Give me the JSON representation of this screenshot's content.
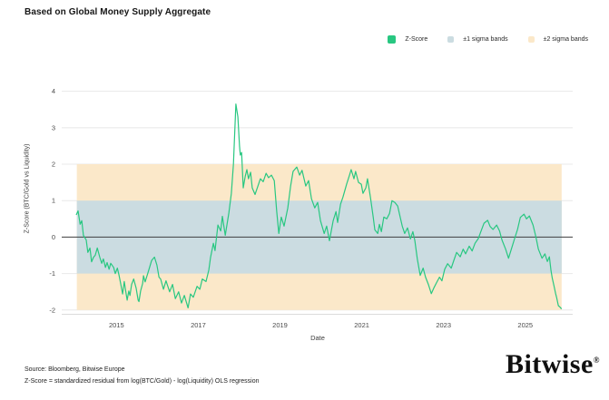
{
  "header": {
    "title": "Based on Global Money Supply Aggregate"
  },
  "legend": {
    "items": [
      {
        "label": "Z-Score",
        "color": "#28C781",
        "swatch": 9
      },
      {
        "label": "±1 sigma bands",
        "color": "#CBDCE1",
        "swatch": 7
      },
      {
        "label": "±2 sigma bands",
        "color": "#FBE8C9",
        "swatch": 7
      }
    ]
  },
  "footer": {
    "source": "Source: Bloomberg, Bitwise Europe",
    "note": "Z-Score = standardized residual from log(BTC/Gold) - log(Liquidity) OLS regression"
  },
  "logo": {
    "text": "Bitwise",
    "registered_mark": "®"
  },
  "chart_data": {
    "type": "line",
    "title": "Based on Global Money Supply Aggregate",
    "xlabel": "Date",
    "ylabel": "Z-Score (BTC/Gold vs Liquidity)",
    "xlim": [
      2013.66,
      2026.16
    ],
    "ylim": [
      -2.13,
      4.14
    ],
    "xticks": [
      2015,
      2017,
      2019,
      2021,
      2023,
      2025
    ],
    "yticks": [
      -2,
      -1,
      0,
      1,
      2,
      3,
      4
    ],
    "grid": true,
    "legend_position": "top-right",
    "zero_line": true,
    "colors": {
      "line": "#28C781",
      "band1": "#CBDCE1",
      "band2": "#FBE8C9",
      "grid": "#E8E8E8",
      "zero_line": "#3F3F3F",
      "axis_line": "#DCDCDC",
      "tick_label": "#4A4A4A"
    },
    "bands": [
      {
        "name": "±2 sigma bands",
        "from": -2,
        "to": 2,
        "color": "#FBE8C9",
        "x_from": 2014.03,
        "x_to": 2025.89
      },
      {
        "name": "±1 sigma bands",
        "from": -1,
        "to": 1,
        "color": "#CBDCE1",
        "x_from": 2014.03,
        "x_to": 2025.89
      }
    ],
    "series": [
      {
        "name": "Z-Score",
        "color": "#28C781",
        "points": [
          [
            2014.02,
            0.62
          ],
          [
            2014.06,
            0.72
          ],
          [
            2014.11,
            0.35
          ],
          [
            2014.15,
            0.45
          ],
          [
            2014.19,
            0.05
          ],
          [
            2014.26,
            -0.08
          ],
          [
            2014.3,
            -0.42
          ],
          [
            2014.35,
            -0.3
          ],
          [
            2014.39,
            -0.68
          ],
          [
            2014.44,
            -0.55
          ],
          [
            2014.48,
            -0.5
          ],
          [
            2014.53,
            -0.3
          ],
          [
            2014.59,
            -0.55
          ],
          [
            2014.64,
            -0.72
          ],
          [
            2014.68,
            -0.6
          ],
          [
            2014.73,
            -0.83
          ],
          [
            2014.77,
            -0.7
          ],
          [
            2014.82,
            -0.88
          ],
          [
            2014.86,
            -0.72
          ],
          [
            2014.93,
            -0.83
          ],
          [
            2014.97,
            -1.0
          ],
          [
            2015.02,
            -0.85
          ],
          [
            2015.06,
            -1.04
          ],
          [
            2015.1,
            -1.27
          ],
          [
            2015.15,
            -1.56
          ],
          [
            2015.19,
            -1.22
          ],
          [
            2015.22,
            -1.45
          ],
          [
            2015.26,
            -1.73
          ],
          [
            2015.3,
            -1.48
          ],
          [
            2015.33,
            -1.6
          ],
          [
            2015.37,
            -1.3
          ],
          [
            2015.42,
            -1.15
          ],
          [
            2015.48,
            -1.4
          ],
          [
            2015.53,
            -1.73
          ],
          [
            2015.55,
            -1.77
          ],
          [
            2015.59,
            -1.48
          ],
          [
            2015.64,
            -1.27
          ],
          [
            2015.66,
            -1.06
          ],
          [
            2015.7,
            -1.23
          ],
          [
            2015.77,
            -0.98
          ],
          [
            2015.86,
            -0.64
          ],
          [
            2015.93,
            -0.55
          ],
          [
            2015.99,
            -0.77
          ],
          [
            2016.04,
            -1.1
          ],
          [
            2016.08,
            -1.15
          ],
          [
            2016.15,
            -1.43
          ],
          [
            2016.21,
            -1.2
          ],
          [
            2016.3,
            -1.5
          ],
          [
            2016.37,
            -1.3
          ],
          [
            2016.44,
            -1.69
          ],
          [
            2016.52,
            -1.5
          ],
          [
            2016.59,
            -1.81
          ],
          [
            2016.66,
            -1.6
          ],
          [
            2016.75,
            -1.94
          ],
          [
            2016.81,
            -1.56
          ],
          [
            2016.88,
            -1.65
          ],
          [
            2016.97,
            -1.35
          ],
          [
            2017.04,
            -1.43
          ],
          [
            2017.1,
            -1.15
          ],
          [
            2017.19,
            -1.22
          ],
          [
            2017.26,
            -0.9
          ],
          [
            2017.3,
            -0.57
          ],
          [
            2017.37,
            -0.17
          ],
          [
            2017.41,
            -0.37
          ],
          [
            2017.48,
            0.33
          ],
          [
            2017.55,
            0.17
          ],
          [
            2017.59,
            0.57
          ],
          [
            2017.66,
            0.05
          ],
          [
            2017.75,
            0.67
          ],
          [
            2017.81,
            1.2
          ],
          [
            2017.86,
            2.0
          ],
          [
            2017.9,
            3.1
          ],
          [
            2017.92,
            3.65
          ],
          [
            2017.97,
            3.3
          ],
          [
            2018.01,
            2.5
          ],
          [
            2018.03,
            2.25
          ],
          [
            2018.06,
            2.32
          ],
          [
            2018.1,
            1.35
          ],
          [
            2018.15,
            1.67
          ],
          [
            2018.19,
            1.85
          ],
          [
            2018.23,
            1.6
          ],
          [
            2018.28,
            1.78
          ],
          [
            2018.32,
            1.35
          ],
          [
            2018.39,
            1.17
          ],
          [
            2018.46,
            1.4
          ],
          [
            2018.52,
            1.6
          ],
          [
            2018.59,
            1.52
          ],
          [
            2018.66,
            1.75
          ],
          [
            2018.72,
            1.63
          ],
          [
            2018.79,
            1.7
          ],
          [
            2018.86,
            1.55
          ],
          [
            2018.92,
            0.7
          ],
          [
            2018.97,
            0.1
          ],
          [
            2019.03,
            0.55
          ],
          [
            2019.1,
            0.3
          ],
          [
            2019.19,
            0.8
          ],
          [
            2019.26,
            1.4
          ],
          [
            2019.32,
            1.8
          ],
          [
            2019.41,
            1.92
          ],
          [
            2019.48,
            1.7
          ],
          [
            2019.54,
            1.83
          ],
          [
            2019.63,
            1.4
          ],
          [
            2019.7,
            1.55
          ],
          [
            2019.77,
            1.05
          ],
          [
            2019.85,
            0.8
          ],
          [
            2019.92,
            0.95
          ],
          [
            2019.99,
            0.45
          ],
          [
            2020.08,
            0.1
          ],
          [
            2020.14,
            0.3
          ],
          [
            2020.21,
            -0.1
          ],
          [
            2020.3,
            0.45
          ],
          [
            2020.37,
            0.7
          ],
          [
            2020.41,
            0.4
          ],
          [
            2020.48,
            0.9
          ],
          [
            2020.54,
            1.1
          ],
          [
            2020.63,
            1.45
          ],
          [
            2020.7,
            1.7
          ],
          [
            2020.74,
            1.85
          ],
          [
            2020.81,
            1.6
          ],
          [
            2020.85,
            1.8
          ],
          [
            2020.92,
            1.5
          ],
          [
            2020.99,
            1.45
          ],
          [
            2021.03,
            1.2
          ],
          [
            2021.1,
            1.35
          ],
          [
            2021.14,
            1.6
          ],
          [
            2021.21,
            1.1
          ],
          [
            2021.28,
            0.55
          ],
          [
            2021.32,
            0.2
          ],
          [
            2021.39,
            0.1
          ],
          [
            2021.43,
            0.35
          ],
          [
            2021.48,
            0.15
          ],
          [
            2021.54,
            0.55
          ],
          [
            2021.61,
            0.5
          ],
          [
            2021.68,
            0.65
          ],
          [
            2021.74,
            1.0
          ],
          [
            2021.81,
            0.95
          ],
          [
            2021.88,
            0.85
          ],
          [
            2021.94,
            0.55
          ],
          [
            2021.99,
            0.3
          ],
          [
            2022.05,
            0.1
          ],
          [
            2022.12,
            0.25
          ],
          [
            2022.19,
            -0.05
          ],
          [
            2022.25,
            0.15
          ],
          [
            2022.3,
            -0.1
          ],
          [
            2022.36,
            -0.6
          ],
          [
            2022.43,
            -1.05
          ],
          [
            2022.5,
            -0.85
          ],
          [
            2022.56,
            -1.1
          ],
          [
            2022.63,
            -1.3
          ],
          [
            2022.7,
            -1.55
          ],
          [
            2022.76,
            -1.4
          ],
          [
            2022.83,
            -1.25
          ],
          [
            2022.9,
            -1.1
          ],
          [
            2022.96,
            -1.2
          ],
          [
            2023.03,
            -0.88
          ],
          [
            2023.1,
            -0.73
          ],
          [
            2023.19,
            -0.85
          ],
          [
            2023.25,
            -0.65
          ],
          [
            2023.32,
            -0.42
          ],
          [
            2023.41,
            -0.54
          ],
          [
            2023.48,
            -0.33
          ],
          [
            2023.54,
            -0.46
          ],
          [
            2023.63,
            -0.25
          ],
          [
            2023.7,
            -0.38
          ],
          [
            2023.77,
            -0.17
          ],
          [
            2023.85,
            -0.04
          ],
          [
            2023.92,
            0.17
          ],
          [
            2023.99,
            0.38
          ],
          [
            2024.08,
            0.46
          ],
          [
            2024.14,
            0.29
          ],
          [
            2024.21,
            0.21
          ],
          [
            2024.3,
            0.33
          ],
          [
            2024.37,
            0.17
          ],
          [
            2024.43,
            -0.08
          ],
          [
            2024.52,
            -0.33
          ],
          [
            2024.59,
            -0.58
          ],
          [
            2024.66,
            -0.33
          ],
          [
            2024.74,
            -0.04
          ],
          [
            2024.81,
            0.21
          ],
          [
            2024.88,
            0.54
          ],
          [
            2024.97,
            0.63
          ],
          [
            2025.03,
            0.5
          ],
          [
            2025.1,
            0.58
          ],
          [
            2025.19,
            0.33
          ],
          [
            2025.26,
            0.0
          ],
          [
            2025.32,
            -0.33
          ],
          [
            2025.41,
            -0.58
          ],
          [
            2025.48,
            -0.46
          ],
          [
            2025.54,
            -0.67
          ],
          [
            2025.59,
            -0.54
          ],
          [
            2025.63,
            -0.92
          ],
          [
            2025.66,
            -1.13
          ],
          [
            2025.7,
            -1.33
          ],
          [
            2025.74,
            -1.54
          ],
          [
            2025.77,
            -1.67
          ],
          [
            2025.81,
            -1.88
          ],
          [
            2025.85,
            -1.92
          ],
          [
            2025.88,
            -1.96
          ]
        ]
      }
    ]
  }
}
